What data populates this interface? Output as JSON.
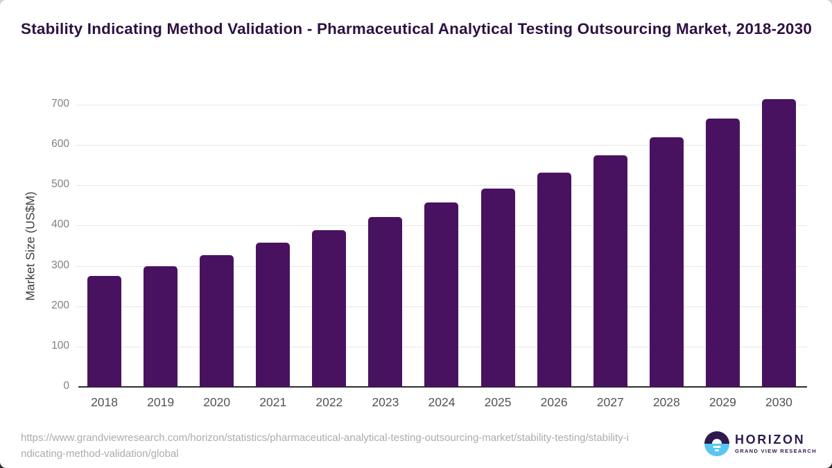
{
  "title": "Stability Indicating Method Validation - Pharmaceutical Analytical Testing Outsourcing Market, 2018-2030",
  "chart_data": {
    "type": "bar",
    "categories": [
      "2018",
      "2019",
      "2020",
      "2021",
      "2022",
      "2023",
      "2024",
      "2025",
      "2026",
      "2027",
      "2028",
      "2029",
      "2030"
    ],
    "values": [
      275,
      300,
      327,
      358,
      389,
      422,
      457,
      492,
      531,
      574,
      619,
      666,
      713
    ],
    "title": "Stability Indicating Method Validation - Pharmaceutical Analytical Testing Outsourcing Market, 2018-2030",
    "xlabel": "",
    "ylabel": "Market Size (US$M)",
    "ylim": [
      0,
      700
    ],
    "yticks": [
      0,
      100,
      200,
      300,
      400,
      500,
      600,
      700
    ],
    "grid": true,
    "legend": "none",
    "bar_color": "#481260"
  },
  "footer": {
    "source_url": "https://www.grandviewresearch.com/horizon/statistics/pharmaceutical-analytical-testing-outsourcing-market/stability-testing/stability-indicating-method-validation/global",
    "logo": {
      "icon": "horizon-sunrise-icon",
      "brand": "HORIZON",
      "sub_brand": "GRAND VIEW RESEARCH"
    }
  },
  "colors": {
    "title": "#2d1142",
    "bar": "#481260",
    "gridline": "#e7e7e7",
    "axis_line": "#2e2e2e",
    "y_tick_labels": "#7f7f7f",
    "x_tick_labels": "#525252",
    "y_axis_title": "#404040",
    "source_url": "#ababab",
    "logo_dark_purple": "#2e1a4d",
    "logo_light_blue": "#56c7f2",
    "background": "#ffffff"
  }
}
